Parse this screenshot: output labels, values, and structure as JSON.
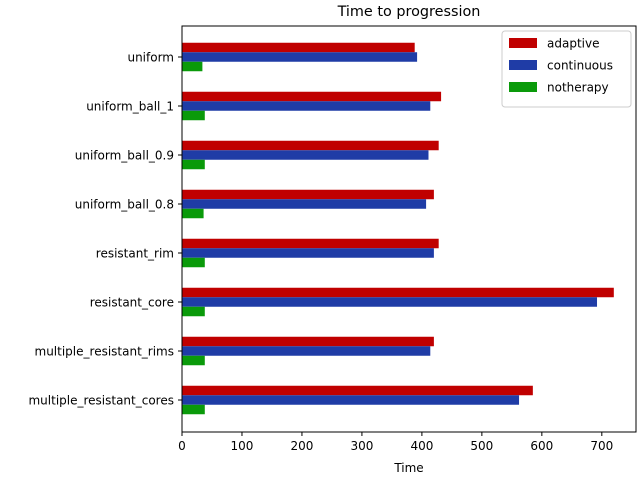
{
  "chart_data": {
    "type": "bar",
    "orientation": "horizontal",
    "title": "Time to progression",
    "xlabel": "Time",
    "ylabel": "",
    "xlim": [
      0,
      757
    ],
    "xticks": [
      0,
      100,
      200,
      300,
      400,
      500,
      600,
      700
    ],
    "grid": false,
    "legend_position": "top-right",
    "categories": [
      "uniform",
      "uniform_ball_1",
      "uniform_ball_0.9",
      "uniform_ball_0.8",
      "resistant_rim",
      "resistant_core",
      "multiple_resistant_rims",
      "multiple_resistant_cores"
    ],
    "series": [
      {
        "name": "adaptive",
        "color": "#c00000",
        "values": [
          388,
          432,
          428,
          420,
          428,
          720,
          420,
          585
        ]
      },
      {
        "name": "continuous",
        "color": "#1f3ca6",
        "values": [
          392,
          414,
          411,
          407,
          420,
          692,
          414,
          562
        ]
      },
      {
        "name": "notherapy",
        "color": "#0a9a0a",
        "values": [
          34,
          38,
          38,
          36,
          38,
          38,
          38,
          38
        ]
      }
    ]
  }
}
